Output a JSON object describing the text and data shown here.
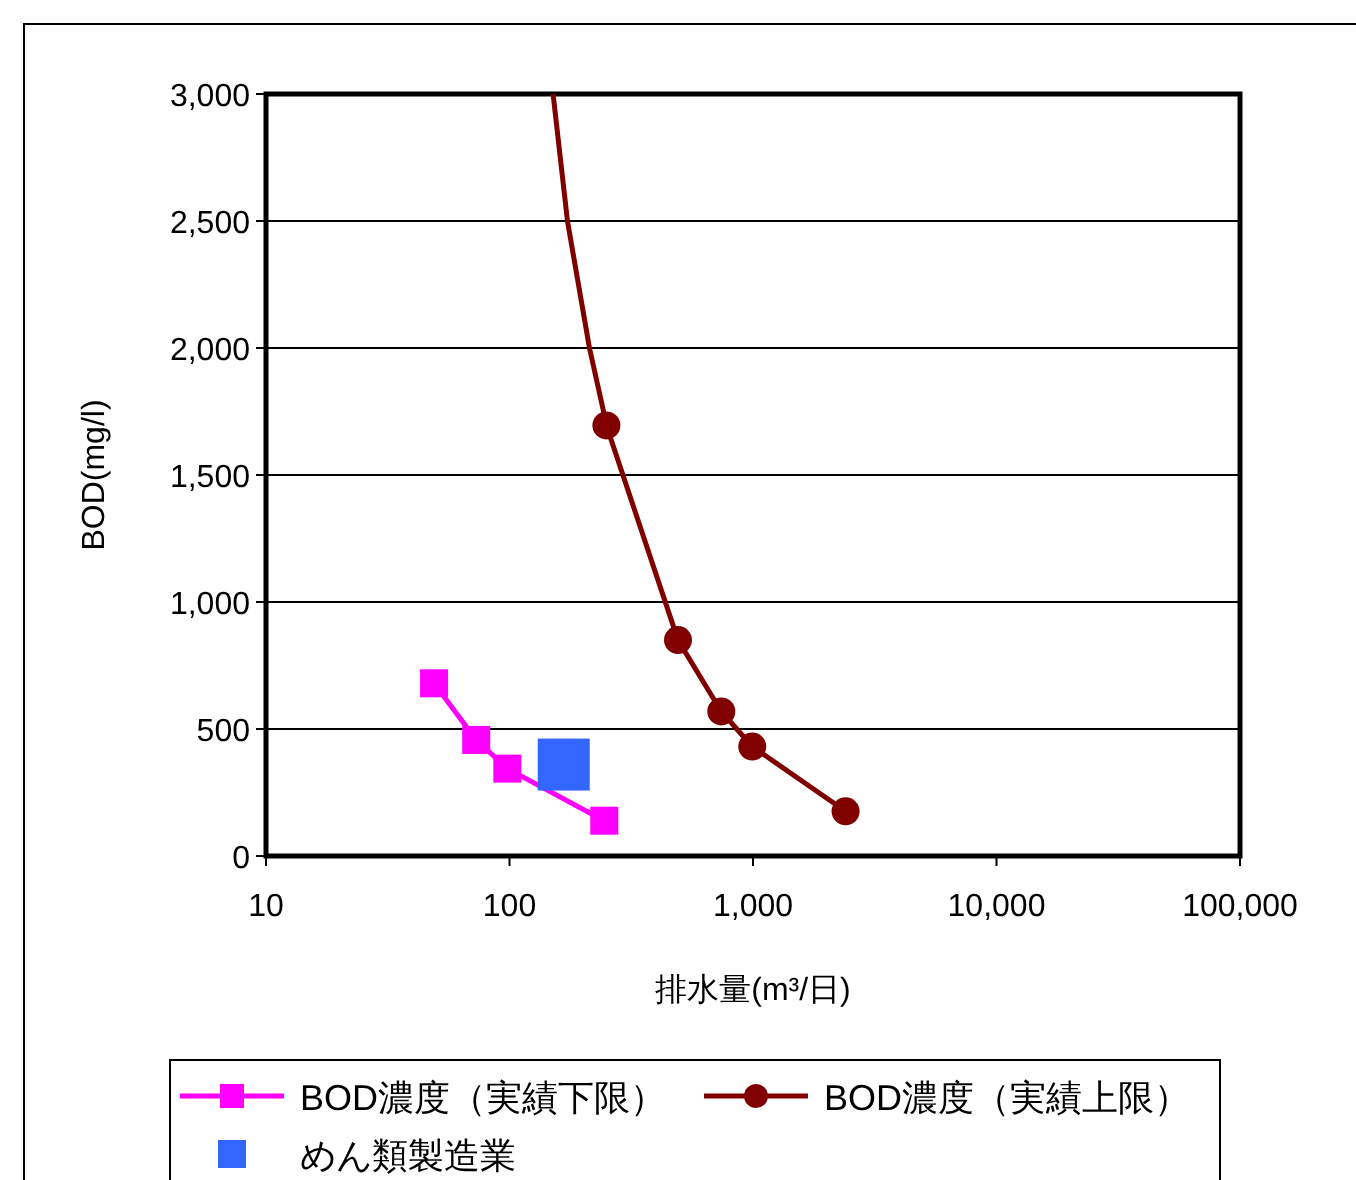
{
  "chart_data": {
    "type": "line",
    "ylabel": "BOD(mg/l)",
    "xlabel": "排水量(m³/日)",
    "log": "x",
    "xlim": [
      10,
      100000
    ],
    "ylim": [
      0,
      3000
    ],
    "xticks": [
      10,
      100,
      {
        "value": 1000,
        "label": "1,000"
      },
      {
        "value": 10000,
        "label": "10,000"
      },
      {
        "value": 100000,
        "label": "100,000"
      }
    ],
    "yticks": [
      0,
      500,
      {
        "value": 1000,
        "label": "1,000"
      },
      {
        "value": 1500,
        "label": "1,500"
      },
      {
        "value": 2000,
        "label": "2,000"
      },
      {
        "value": 2500,
        "label": "2,500"
      },
      {
        "value": 3000,
        "label": "3,000"
      }
    ],
    "grid": "y",
    "legend": "bottom",
    "series": [
      {
        "color": "#800000",
        "marker": "none",
        "x": [
          151,
          173,
          213,
          250
        ],
        "values": [
          3000,
          2500,
          2000,
          1700
        ]
      },
      {
        "name": "BOD濃度（実績下限）",
        "color": "#ff00ff",
        "marker": "square",
        "x": [
          49,
          73,
          98,
          245
        ],
        "values": [
          680,
          457,
          344,
          139
        ]
      },
      {
        "name": "BOD濃度（実績上限）",
        "color": "#800000",
        "marker": "circle",
        "x": [
          250,
          492,
          741,
          993,
          2400
        ],
        "values": [
          1695,
          850,
          569,
          431,
          176
        ]
      },
      {
        "name": "めん類製造業",
        "type": "scatter",
        "color": "#3366ff",
        "marker": "square",
        "x": [
          167
        ],
        "values": [
          360
        ]
      }
    ]
  }
}
